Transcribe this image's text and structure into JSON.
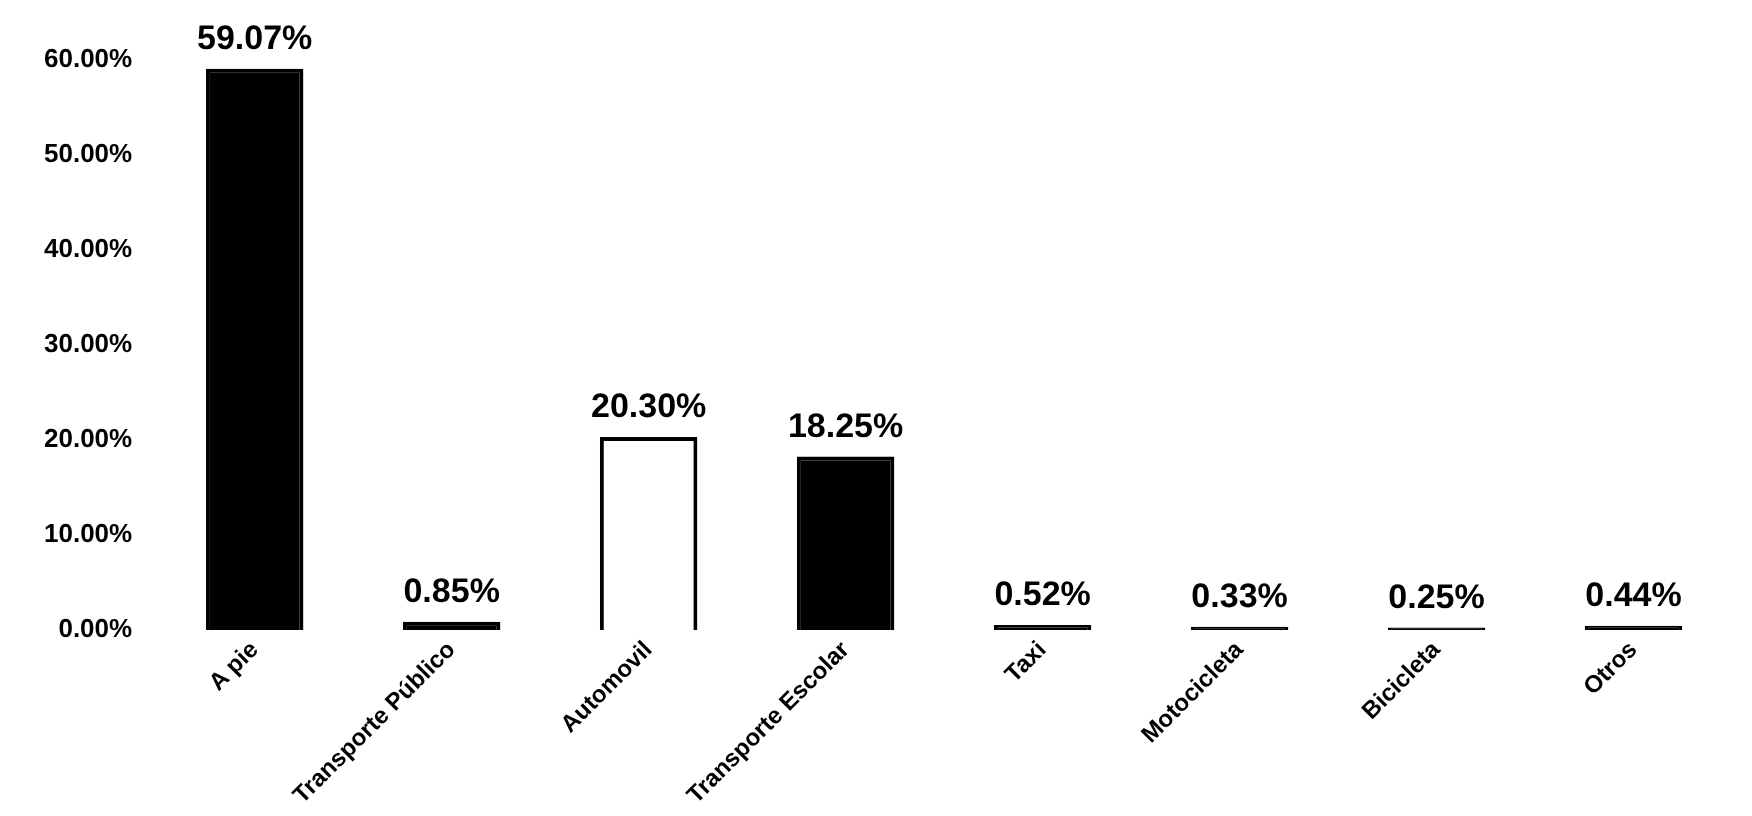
{
  "chart_data": {
    "type": "bar",
    "categories": [
      "A pie",
      "Transporte Público",
      "Automovil",
      "Transporte Escolar",
      "Taxi",
      "Motocicleta",
      "Bicicleta",
      "Otros"
    ],
    "values": [
      59.07,
      0.85,
      20.3,
      18.25,
      0.52,
      0.33,
      0.25,
      0.44
    ],
    "value_labels": [
      "59.07%",
      "0.85%",
      "20.30%",
      "18.25%",
      "0.52%",
      "0.33%",
      "0.25%",
      "0.44%"
    ],
    "colors": [
      "#000000",
      "#000000",
      "#ffffff",
      "#000000",
      "#000000",
      "#000000",
      "#000000",
      "#000000"
    ],
    "ylim": [
      0,
      60
    ],
    "yticks": [
      {
        "value": 0,
        "label": "0.00%"
      },
      {
        "value": 10,
        "label": "10.00%"
      },
      {
        "value": 20,
        "label": "20.00%"
      },
      {
        "value": 30,
        "label": "30.00%"
      },
      {
        "value": 40,
        "label": "40.00%"
      },
      {
        "value": 50,
        "label": "50.00%"
      },
      {
        "value": 60,
        "label": "60.00%"
      }
    ],
    "grid": false,
    "legend": false
  }
}
